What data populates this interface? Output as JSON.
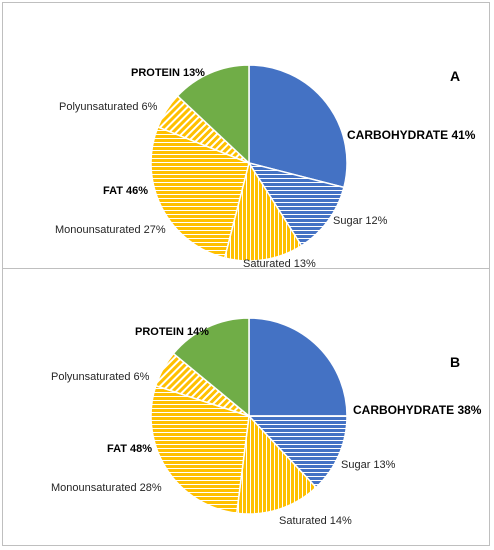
{
  "colors": {
    "carbohydrate": "#4472C4",
    "fat": "#FFC000",
    "protein": "#70AD47",
    "panel_border": "#BFBFBF",
    "stripe": "#ffffff"
  },
  "chart_data": [
    {
      "type": "pie",
      "panel_label": "A",
      "slices": [
        {
          "label": "CARBOHYDRATE 41%",
          "group": "carbohydrate",
          "value": 29,
          "pattern": "solid",
          "bold": true
        },
        {
          "label": "Sugar 12%",
          "group": "carbohydrate",
          "value": 12,
          "pattern": "horizontal",
          "bold": false
        },
        {
          "label": "Saturated 13%",
          "group": "fat",
          "value": 13,
          "pattern": "vertical",
          "bold": false
        },
        {
          "label": "Monounsaturated 27%",
          "group": "fat",
          "value": 27,
          "pattern": "horizontal",
          "bold": false
        },
        {
          "label": "Polyunsaturated 6%",
          "group": "fat",
          "value": 6,
          "pattern": "diagonal",
          "bold": false
        },
        {
          "label": "PROTEIN 13%",
          "group": "protein",
          "value": 13,
          "pattern": "solid",
          "bold": true
        }
      ],
      "extra_labels": [
        {
          "label": "FAT 46%",
          "bold": true
        }
      ]
    },
    {
      "type": "pie",
      "panel_label": "B",
      "slices": [
        {
          "label": "CARBOHYDRATE 38%",
          "group": "carbohydrate",
          "value": 25,
          "pattern": "solid",
          "bold": true
        },
        {
          "label": "Sugar 13%",
          "group": "carbohydrate",
          "value": 13,
          "pattern": "horizontal",
          "bold": false
        },
        {
          "label": "Saturated 14%",
          "group": "fat",
          "value": 14,
          "pattern": "vertical",
          "bold": false
        },
        {
          "label": "Monounsaturated 28%",
          "group": "fat",
          "value": 28,
          "pattern": "horizontal",
          "bold": false
        },
        {
          "label": "Polyunsaturated 6%",
          "group": "fat",
          "value": 6,
          "pattern": "diagonal",
          "bold": false
        },
        {
          "label": "PROTEIN 14%",
          "group": "protein",
          "value": 14,
          "pattern": "solid",
          "bold": true
        }
      ],
      "extra_labels": [
        {
          "label": "FAT 48%",
          "bold": true
        }
      ]
    }
  ]
}
